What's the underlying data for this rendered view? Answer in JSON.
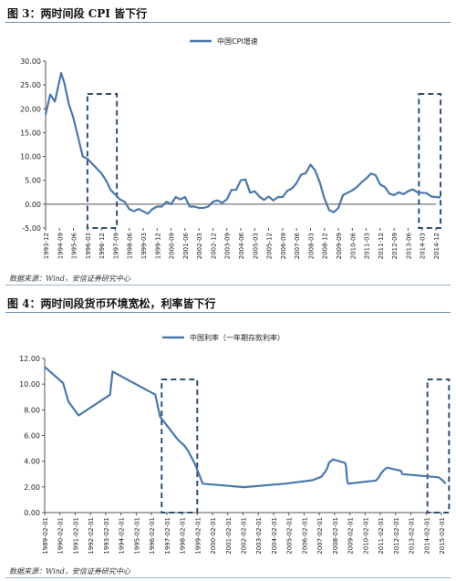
{
  "figure1": {
    "title": "图 3：两时间段 CPI 皆下行",
    "source": "数据来源：Wind，安信证券研究中心"
  },
  "figure2": {
    "title": "图 4：两时间段货币环境宽松，利率皆下行",
    "source": "数据来源：Wind，安信证券研究中心"
  },
  "colors": {
    "line": "#4a78aa",
    "box": "#2f4f73",
    "axis": "#555555"
  },
  "chart_data": [
    {
      "type": "line",
      "title": "",
      "series": [
        {
          "name": "中国CPI增速",
          "x": [
            "1993-12",
            "1994-03",
            "1994-06",
            "1994-09",
            "1994-10",
            "1994-12",
            "1995-03",
            "1995-06",
            "1995-09",
            "1995-12",
            "1996-03",
            "1996-06",
            "1996-09",
            "1996-12",
            "1997-03",
            "1997-06",
            "1997-09",
            "1997-12",
            "1998-03",
            "1998-06",
            "1998-09",
            "1998-12",
            "1999-03",
            "1999-06",
            "1999-09",
            "1999-12",
            "2000-03",
            "2000-06",
            "2000-09",
            "2000-12",
            "2001-03",
            "2001-06",
            "2001-09",
            "2001-12",
            "2002-03",
            "2002-06",
            "2002-09",
            "2002-12",
            "2003-03",
            "2003-06",
            "2003-09",
            "2003-12",
            "2004-03",
            "2004-06",
            "2004-09",
            "2004-12",
            "2005-03",
            "2005-06",
            "2005-09",
            "2005-12",
            "2006-03",
            "2006-06",
            "2006-09",
            "2006-12",
            "2007-03",
            "2007-06",
            "2007-09",
            "2007-12",
            "2008-03",
            "2008-06",
            "2008-09",
            "2008-12",
            "2009-03",
            "2009-06",
            "2009-09",
            "2009-12",
            "2010-03",
            "2010-06",
            "2010-09",
            "2010-12",
            "2011-03",
            "2011-06",
            "2011-09",
            "2011-12",
            "2012-03",
            "2012-06",
            "2012-09",
            "2012-12",
            "2013-03",
            "2013-06",
            "2013-09",
            "2013-12",
            "2014-03",
            "2014-06",
            "2014-09",
            "2014-12",
            "2015-03"
          ],
          "values": [
            18.8,
            23.0,
            21.5,
            26.0,
            27.5,
            25.5,
            21.0,
            18.0,
            14.0,
            10.0,
            9.5,
            8.5,
            7.5,
            6.5,
            5.0,
            3.0,
            2.0,
            1.0,
            0.5,
            -1.0,
            -1.5,
            -1.0,
            -1.5,
            -2.0,
            -1.0,
            -0.5,
            -0.5,
            0.5,
            0.0,
            1.5,
            1.0,
            1.5,
            -0.5,
            -0.5,
            -0.8,
            -0.8,
            -0.5,
            0.5,
            0.8,
            0.3,
            1.0,
            3.0,
            3.0,
            5.0,
            5.2,
            2.4,
            2.7,
            1.6,
            0.9,
            1.6,
            0.8,
            1.5,
            1.5,
            2.8,
            3.3,
            4.4,
            6.2,
            6.5,
            8.3,
            7.1,
            4.6,
            1.2,
            -1.2,
            -1.7,
            -0.8,
            1.9,
            2.4,
            2.9,
            3.6,
            4.6,
            5.4,
            6.4,
            6.1,
            4.1,
            3.6,
            2.2,
            1.9,
            2.5,
            2.1,
            2.7,
            3.1,
            2.5,
            2.4,
            2.3,
            1.6,
            1.5,
            1.4
          ]
        }
      ],
      "x_ticks": [
        "1993-12",
        "1994-09",
        "1995-06",
        "1996-03",
        "1996-12",
        "1997-09",
        "1998-06",
        "1999-03",
        "1999-12",
        "2000-09",
        "2001-06",
        "2002-03",
        "2002-12",
        "2003-09",
        "2004-06",
        "2005-03",
        "2005-12",
        "2006-09",
        "2007-06",
        "2008-03",
        "2008-12",
        "2009-09",
        "2010-06",
        "2011-03",
        "2011-12",
        "2012-09",
        "2013-06",
        "2014-03",
        "2014-12"
      ],
      "y_ticks": [
        "-5.00",
        "0.00",
        "5.00",
        "10.00",
        "15.00",
        "20.00",
        "25.00",
        "30.00"
      ],
      "ylim": [
        -5,
        30
      ],
      "legend": "top-center",
      "highlight_boxes": [
        [
          "1996-03",
          "1997-10"
        ],
        [
          "2014-01",
          "2015-03"
        ]
      ]
    },
    {
      "type": "line",
      "title": "",
      "series": [
        {
          "name": "中国利率（一年期存款利率）",
          "x": [
            "1989-02-01",
            "1990-04-15",
            "1990-08-21",
            "1991-04-21",
            "1993-05-15",
            "1993-07-11",
            "1996-05-01",
            "1996-08-23",
            "1997-10-23",
            "1998-03-25",
            "1998-07-01",
            "1998-12-07",
            "1999-06-10",
            "2002-02-21",
            "2004-10-29",
            "2006-08-19",
            "2007-03-18",
            "2007-05-19",
            "2007-07-21",
            "2007-08-22",
            "2007-09-15",
            "2007-12-21",
            "2008-10-09",
            "2008-10-30",
            "2008-11-27",
            "2008-12-23",
            "2010-10-20",
            "2010-12-26",
            "2011-02-09",
            "2011-04-06",
            "2011-07-07",
            "2012-06-08",
            "2012-07-06",
            "2014-11-22",
            "2015-03-01",
            "2015-05-11"
          ],
          "values": [
            11.34,
            10.08,
            8.64,
            7.56,
            9.18,
            10.98,
            9.18,
            7.47,
            5.67,
            5.22,
            4.77,
            3.78,
            2.25,
            1.98,
            2.25,
            2.52,
            2.79,
            3.06,
            3.33,
            3.6,
            3.87,
            4.14,
            3.87,
            3.6,
            2.52,
            2.25,
            2.5,
            2.75,
            3.0,
            3.25,
            3.5,
            3.25,
            3.0,
            2.75,
            2.5,
            2.25
          ]
        }
      ],
      "x_ticks": [
        "1989-02-01",
        "1990-02-01",
        "1991-02-01",
        "1992-02-01",
        "1993-02-01",
        "1994-02-01",
        "1995-02-01",
        "1996-02-01",
        "1997-02-01",
        "1998-02-01",
        "1999-02-01",
        "2000-02-01",
        "2001-02-01",
        "2002-02-01",
        "2003-02-01",
        "2004-02-01",
        "2005-02-01",
        "2006-02-01",
        "2007-02-01",
        "2008-02-01",
        "2009-02-01",
        "2010-02-01",
        "2011-02-01",
        "2012-02-01",
        "2013-02-01",
        "2014-02-01",
        "2015-02-01"
      ],
      "y_ticks": [
        "0.00",
        "2.00",
        "4.00",
        "6.00",
        "8.00",
        "10.00",
        "12.00"
      ],
      "ylim": [
        0,
        12
      ],
      "legend": "top-center",
      "highlight_boxes": [
        [
          "1996-10-01",
          "1999-02-01"
        ],
        [
          "2014-03-01",
          "2015-08-01"
        ]
      ]
    }
  ]
}
